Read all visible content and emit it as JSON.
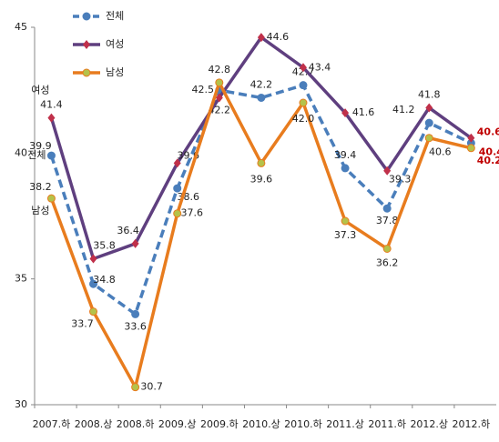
{
  "chart_data": {
    "type": "line",
    "categories": [
      "2007.하",
      "2008.상",
      "2008.하",
      "2009.상",
      "2009.하",
      "2010.상",
      "2010.하",
      "2011.상",
      "2011.하",
      "2012.상",
      "2012.하"
    ],
    "series": [
      {
        "name": "전체",
        "color": "#4a7ebb",
        "dashed": true,
        "marker": "circle",
        "marker_color": "#4a7ebb",
        "values": [
          39.9,
          34.8,
          33.6,
          38.6,
          42.5,
          42.2,
          42.7,
          39.4,
          37.8,
          41.2,
          40.4
        ]
      },
      {
        "name": "여성",
        "color": "#5f3f7f",
        "dashed": false,
        "marker": "diamond",
        "marker_color": "#c0304a",
        "values": [
          41.4,
          35.8,
          36.4,
          39.6,
          42.2,
          44.6,
          43.4,
          41.6,
          39.3,
          41.8,
          40.6
        ]
      },
      {
        "name": "남성",
        "color": "#e87c1e",
        "dashed": false,
        "marker": "circle",
        "marker_color": "#b5c24a",
        "values": [
          38.2,
          33.7,
          30.7,
          37.6,
          42.8,
          39.6,
          42.0,
          37.3,
          36.2,
          40.6,
          40.2
        ],
        "value_labels": [
          "38.2",
          "33.7",
          "30.7",
          "37.6",
          "42.8",
          "39.6",
          "42.0",
          "37.3",
          "36.2",
          "40.6",
          "40.2"
        ]
      }
    ],
    "ylim": [
      30,
      45
    ],
    "yticks": [
      30,
      35,
      40,
      45
    ],
    "grid": false,
    "legend": "top-left",
    "last_label_color": "#c00000"
  }
}
